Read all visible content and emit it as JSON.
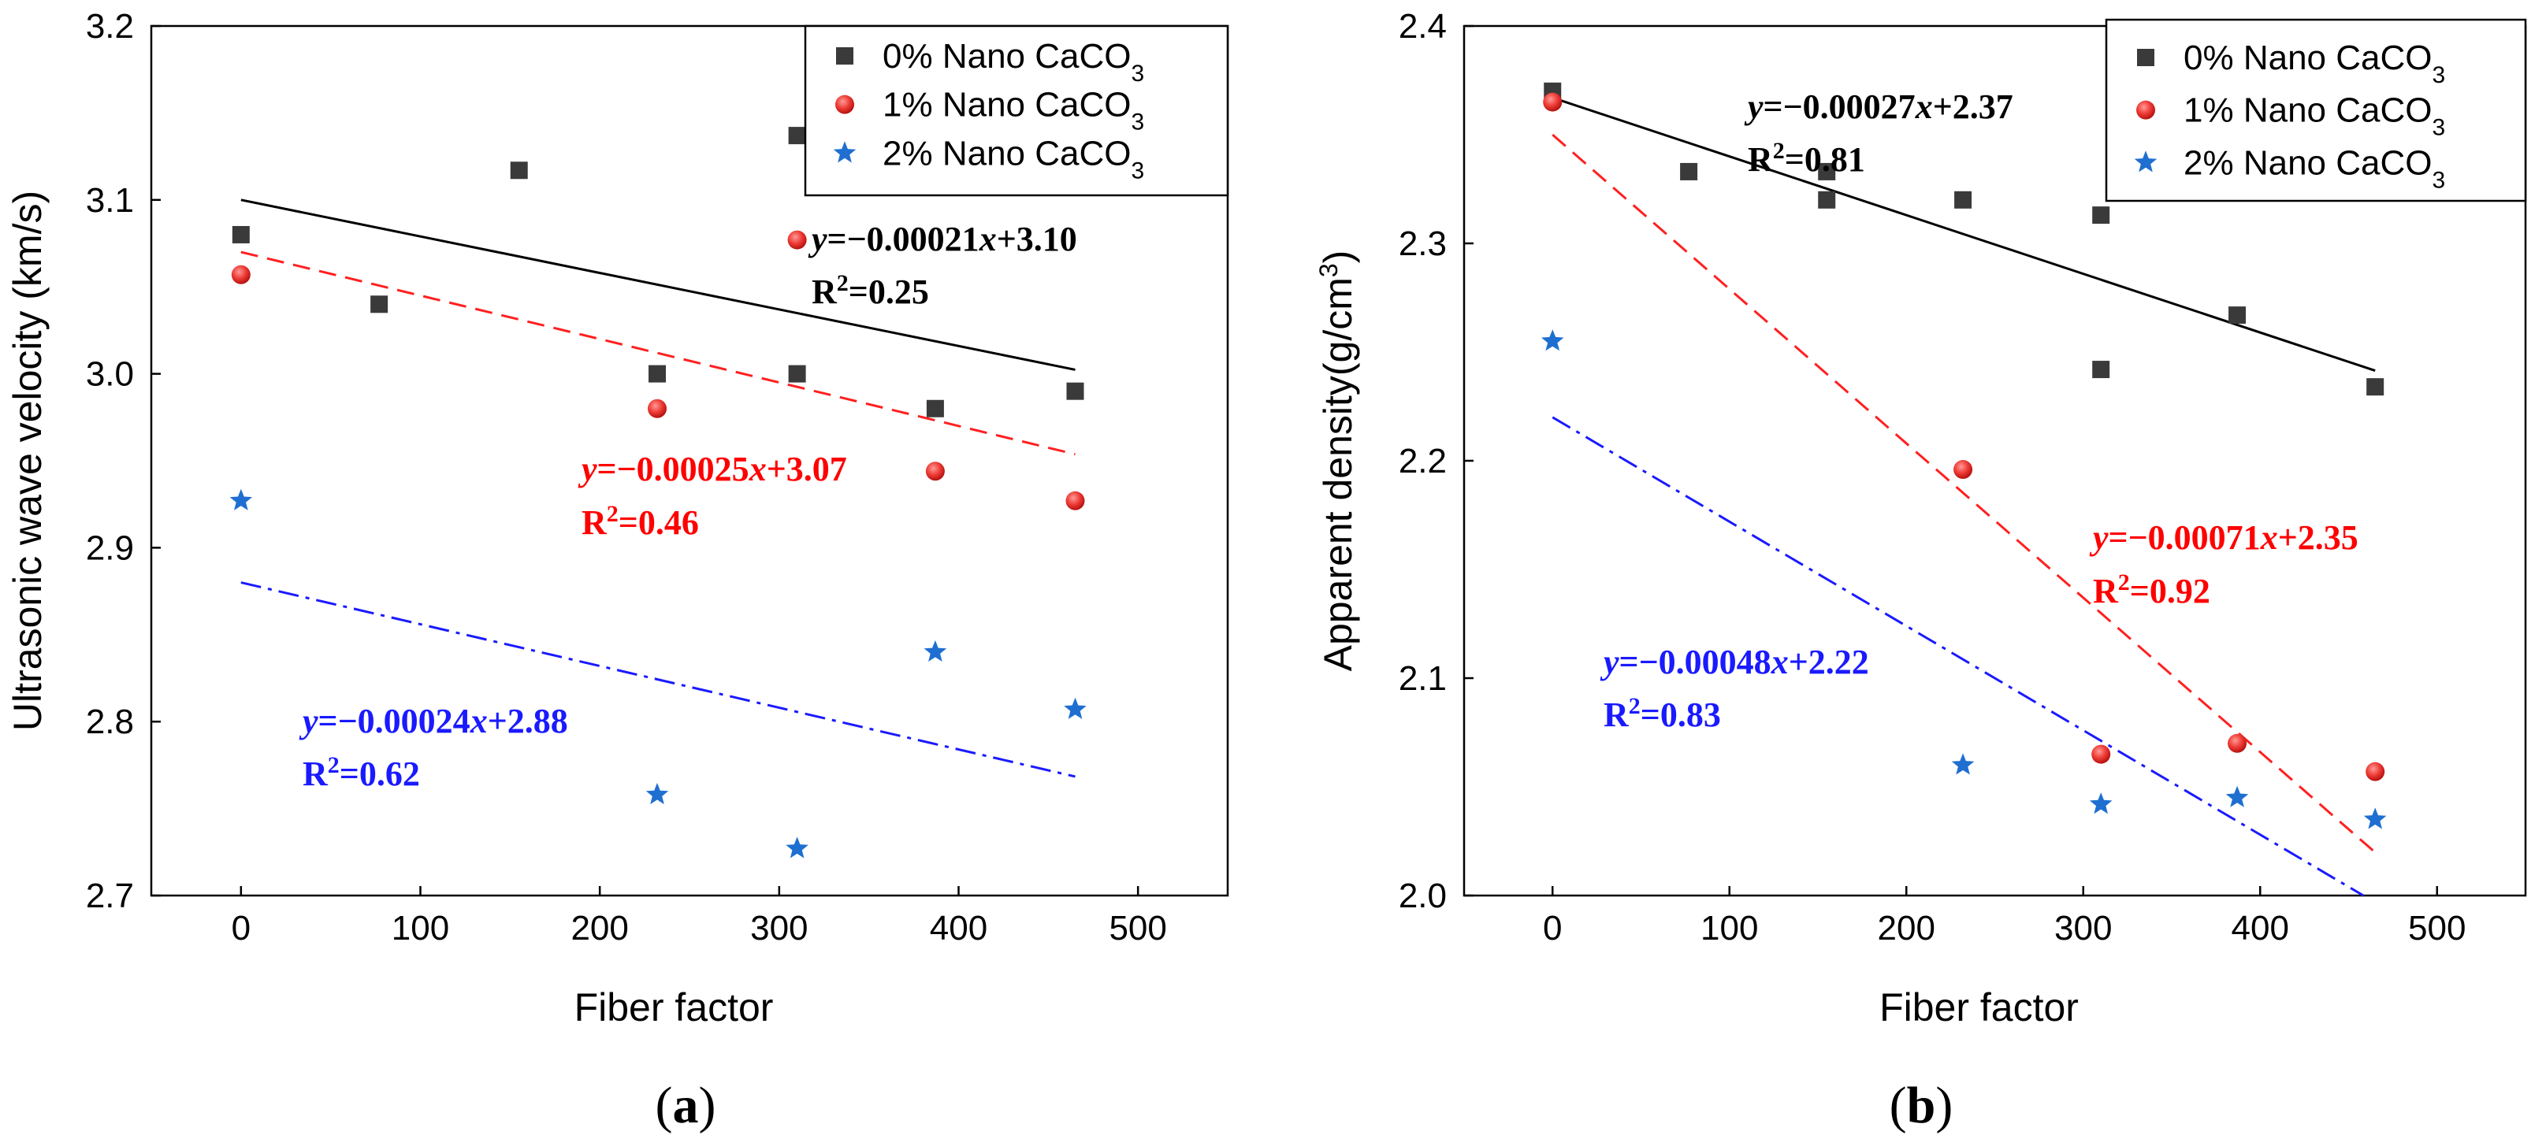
{
  "panels_labels": [
    "(a)",
    "(b)"
  ],
  "chart_data": [
    {
      "type": "scatter",
      "panel": "(a)",
      "title": "",
      "xlabel": "Fiber factor",
      "ylabel": "Ultrasonic wave velocity (km/s)",
      "xlim": [
        -50,
        550
      ],
      "ylim": [
        2.7,
        3.2
      ],
      "xticks": [
        0,
        100,
        200,
        300,
        400,
        500
      ],
      "yticks": [
        2.7,
        2.8,
        2.9,
        3.0,
        3.1,
        3.2
      ],
      "ytick_labels": [
        "2.7",
        "2.8",
        "2.9",
        "3.0",
        "3.1",
        "3.2"
      ],
      "legend_position": "top-right",
      "series": [
        {
          "name": "0% Nano CaCO3",
          "legend_main": "0% Nano CaCO",
          "legend_sub": "3",
          "marker": "square",
          "color": "#3a3a3a",
          "x": [
            0,
            77,
            155,
            232,
            310,
            310,
            387,
            465
          ],
          "y": [
            3.08,
            3.04,
            3.117,
            3.0,
            3.137,
            3.0,
            2.98,
            2.99
          ],
          "fit": {
            "slope": -0.00021,
            "intercept": 3.1,
            "x_range": [
              0,
              465
            ],
            "style": "solid",
            "color": "#000000"
          },
          "equation": "y=−0.00021x+3.10",
          "r2": "R2=0.25",
          "eq_color": "#000000"
        },
        {
          "name": "1% Nano CaCO3",
          "legend_main": "1% Nano CaCO",
          "legend_sub": "3",
          "marker": "circle",
          "color": "#e8413f",
          "x": [
            0,
            232,
            310,
            387,
            465
          ],
          "y": [
            3.057,
            2.98,
            3.077,
            2.944,
            2.927
          ],
          "fit": {
            "slope": -0.00025,
            "intercept": 3.07,
            "x_range": [
              0,
              465
            ],
            "style": "dashed",
            "color": "#ff2020"
          },
          "equation": "y=−0.00025x+3.07",
          "r2": "R2=0.46",
          "eq_color": "#ff0000"
        },
        {
          "name": "2% Nano CaCO3",
          "legend_main": "2% Nano CaCO",
          "legend_sub": "3",
          "marker": "star",
          "color": "#1f6fd1",
          "x": [
            0,
            232,
            310,
            387,
            465
          ],
          "y": [
            2.927,
            2.758,
            2.727,
            2.84,
            2.807
          ],
          "fit": {
            "slope": -0.00024,
            "intercept": 2.88,
            "x_range": [
              0,
              465
            ],
            "style": "dashdot",
            "color": "#1a1aff"
          },
          "equation": "y=−0.00024x+2.88",
          "r2": "R2=0.62",
          "eq_color": "#1a1aff"
        }
      ]
    },
    {
      "type": "scatter",
      "panel": "(b)",
      "title": "",
      "xlabel": "Fiber factor",
      "ylabel_main": "Apparent density(g/cm",
      "ylabel_sup": "3",
      "ylabel_close": ")",
      "xlim": [
        -50,
        550
      ],
      "ylim": [
        2.0,
        2.4
      ],
      "xticks": [
        0,
        100,
        200,
        300,
        400,
        500
      ],
      "yticks": [
        2.0,
        2.1,
        2.2,
        2.3,
        2.4
      ],
      "ytick_labels": [
        "2.0",
        "2.1",
        "2.2",
        "2.3",
        "2.4"
      ],
      "legend_position": "top-right",
      "series": [
        {
          "name": "0% Nano CaCO3",
          "legend_main": "0% Nano CaCO",
          "legend_sub": "3",
          "marker": "square",
          "color": "#3a3a3a",
          "x": [
            0,
            77,
            155,
            155,
            232,
            310,
            310,
            387,
            465
          ],
          "y": [
            2.37,
            2.333,
            2.333,
            2.32,
            2.32,
            2.313,
            2.242,
            2.267,
            2.234
          ],
          "fit": {
            "slope": -0.00027,
            "intercept": 2.367,
            "x_range": [
              0,
              465
            ],
            "style": "solid",
            "color": "#000000"
          },
          "equation": "y=−0.00027x+2.37",
          "r2": "R2=0.81",
          "eq_color": "#000000"
        },
        {
          "name": "1% Nano CaCO3",
          "legend_main": "1% Nano CaCO",
          "legend_sub": "3",
          "marker": "circle",
          "color": "#e8413f",
          "x": [
            0,
            232,
            310,
            387,
            465
          ],
          "y": [
            2.365,
            2.196,
            2.065,
            2.07,
            2.057
          ],
          "fit": {
            "slope": -0.00071,
            "intercept": 2.35,
            "x_range": [
              0,
              465
            ],
            "style": "dashed",
            "color": "#ff2020"
          },
          "equation": "y=−0.00071x+2.35",
          "r2": "R2=0.92",
          "eq_color": "#ff0000"
        },
        {
          "name": "2% Nano CaCO3",
          "legend_main": "2% Nano CaCO",
          "legend_sub": "3",
          "marker": "star",
          "color": "#1f6fd1",
          "x": [
            0,
            232,
            310,
            387,
            465
          ],
          "y": [
            2.255,
            2.06,
            2.042,
            2.045,
            2.035
          ],
          "fit": {
            "slope": -0.00048,
            "intercept": 2.22,
            "x_range": [
              0,
              465
            ],
            "style": "dashdot",
            "color": "#1a1aff"
          },
          "equation": "y=−0.00048x+2.22",
          "r2": "R2=0.83",
          "eq_color": "#1a1aff"
        }
      ]
    }
  ]
}
